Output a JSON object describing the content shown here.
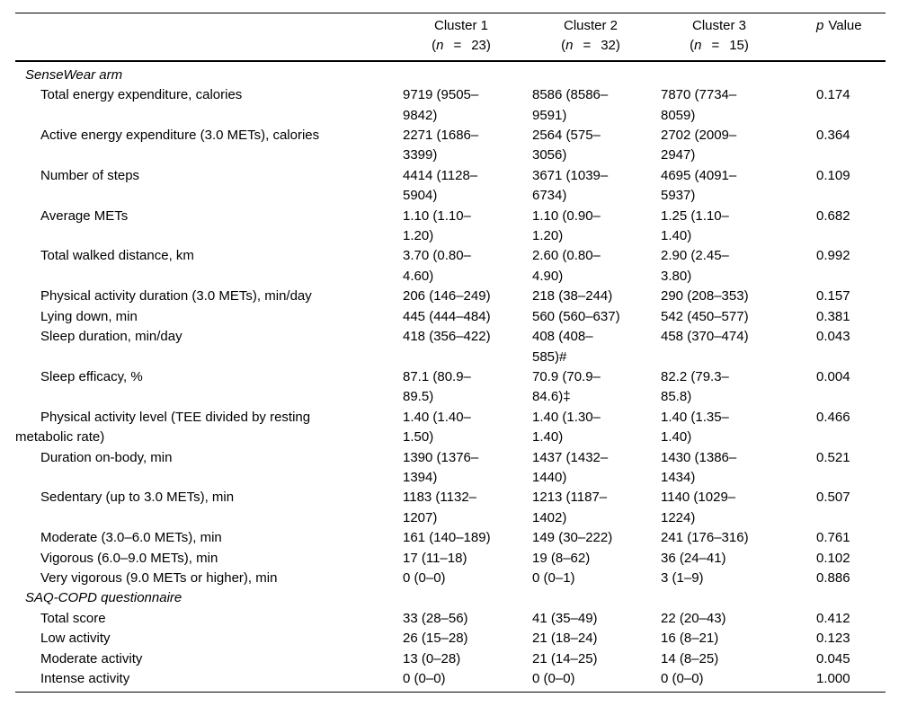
{
  "table": {
    "header": {
      "clusters": [
        {
          "title": "Cluster 1",
          "open": "(",
          "n": "n",
          "eq": "=",
          "count": "23",
          "close": ")"
        },
        {
          "title": "Cluster 2",
          "open": "(",
          "n": "n",
          "eq": "=",
          "count": "32",
          "close": ")"
        },
        {
          "title": "Cluster 3",
          "open": "(",
          "n": "n",
          "eq": "=",
          "count": "15",
          "close": ")"
        }
      ],
      "p": {
        "sym": "p",
        "rest": "Value"
      }
    },
    "rows": [
      {
        "type": "section",
        "label": "SenseWear arm"
      },
      {
        "type": "item",
        "label": "Total energy expenditure, calories",
        "c1": "9719 (9505–\n9842)",
        "c2": "8586 (8586–\n9591)",
        "c3": "7870 (7734–\n8059)",
        "p": "0.174"
      },
      {
        "type": "item",
        "label": "Active energy expenditure (3.0 METs), calories",
        "c1": "2271 (1686–\n3399)",
        "c2": "2564 (575–\n3056)",
        "c3": "2702 (2009–\n2947)",
        "p": "0.364"
      },
      {
        "type": "item",
        "label": "Number of steps",
        "c1": "4414 (1128–\n5904)",
        "c2": "3671 (1039–\n6734)",
        "c3": "4695 (4091–\n5937)",
        "p": "0.109"
      },
      {
        "type": "item",
        "label": "Average METs",
        "c1": "1.10 (1.10–\n1.20)",
        "c2": "1.10 (0.90–\n1.20)",
        "c3": "1.25 (1.10–\n1.40)",
        "p": "0.682"
      },
      {
        "type": "item",
        "label": "Total walked distance, km",
        "c1": "3.70 (0.80–\n4.60)",
        "c2": "2.60 (0.80–\n4.90)",
        "c3": "2.90 (2.45–\n3.80)",
        "p": "0.992"
      },
      {
        "type": "item",
        "label": "Physical activity duration (3.0 METs), min/day",
        "c1": "206 (146–249)",
        "c2": "218 (38–244)",
        "c3": "290 (208–353)",
        "p": "0.157"
      },
      {
        "type": "item",
        "label": "Lying down, min",
        "c1": "445 (444–484)",
        "c2": "560 (560–637)",
        "c3": "542 (450–577)",
        "p": "0.381"
      },
      {
        "type": "item",
        "label": "Sleep duration, min/day",
        "c1": "418 (356–422)",
        "c2": "408 (408–\n585)#",
        "c3": "458 (370–474)",
        "p": "0.043"
      },
      {
        "type": "item",
        "label": "Sleep efficacy, %",
        "c1": "87.1 (80.9–\n89.5)",
        "c2": "70.9 (70.9–\n84.6)‡",
        "c3": "82.2 (79.3–\n85.8)",
        "p": "0.004"
      },
      {
        "type": "item",
        "label": "Physical activity level (TEE divided by resting\nmetabolic rate)",
        "c1": "1.40 (1.40–\n1.50)",
        "c2": "1.40 (1.30–\n1.40)",
        "c3": "1.40 (1.35–\n1.40)",
        "p": "0.466"
      },
      {
        "type": "item",
        "label": "Duration on-body, min",
        "c1": "1390 (1376–\n1394)",
        "c2": "1437 (1432–\n1440)",
        "c3": "1430 (1386–\n1434)",
        "p": "0.521"
      },
      {
        "type": "item",
        "label": "Sedentary (up to 3.0 METs), min",
        "c1": "1183 (1132–\n1207)",
        "c2": "1213 (1187–\n1402)",
        "c3": "1140 (1029–\n1224)",
        "p": "0.507"
      },
      {
        "type": "item",
        "label": "Moderate (3.0–6.0 METs), min",
        "c1": "161 (140–189)",
        "c2": "149 (30–222)",
        "c3": "241 (176–316)",
        "p": "0.761"
      },
      {
        "type": "item",
        "label": "Vigorous (6.0–9.0 METs), min",
        "c1": "17 (11–18)",
        "c2": "19 (8–62)",
        "c3": "36 (24–41)",
        "p": "0.102"
      },
      {
        "type": "item",
        "label": "Very vigorous (9.0 METs or higher), min",
        "c1": "0 (0–0)",
        "c2": "0 (0–1)",
        "c3": "3 (1–9)",
        "p": "0.886"
      },
      {
        "type": "section",
        "label": "SAQ-COPD questionnaire"
      },
      {
        "type": "item",
        "label": "Total score",
        "c1": "33 (28–56)",
        "c2": "41 (35–49)",
        "c3": "22 (20–43)",
        "p": "0.412"
      },
      {
        "type": "item",
        "label": "Low activity",
        "c1": "26 (15–28)",
        "c2": "21 (18–24)",
        "c3": "16 (8–21)",
        "p": "0.123"
      },
      {
        "type": "item",
        "label": "Moderate activity",
        "c1": "13 (0–28)",
        "c2": "21 (14–25)",
        "c3": "14 (8–25)",
        "p": "0.045"
      },
      {
        "type": "item",
        "label": "Intense activity",
        "c1": "0 (0–0)",
        "c2": "0 (0–0)",
        "c3": "0 (0–0)",
        "p": "1.000"
      }
    ]
  }
}
